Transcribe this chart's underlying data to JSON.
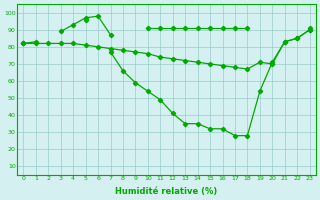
{
  "x": [
    0,
    1,
    2,
    3,
    4,
    5,
    6,
    7,
    8,
    9,
    10,
    11,
    12,
    13,
    14,
    15,
    16,
    17,
    18,
    19,
    20,
    21,
    22,
    23
  ],
  "line_flat": [
    82,
    83,
    null,
    89,
    93,
    97,
    98,
    87,
    null,
    null,
    91,
    91,
    91,
    91,
    91,
    91,
    91,
    91,
    91,
    null,
    null,
    null,
    null,
    91
  ],
  "line_diag": [
    82,
    82,
    82,
    82,
    82,
    81,
    80,
    79,
    78,
    77,
    76,
    74,
    73,
    72,
    71,
    70,
    69,
    68,
    67,
    71,
    70,
    83,
    85,
    90
  ],
  "line_dip": [
    82,
    null,
    null,
    null,
    null,
    96,
    null,
    77,
    66,
    59,
    54,
    49,
    41,
    35,
    35,
    32,
    32,
    28,
    28,
    54,
    71,
    83,
    85,
    90
  ],
  "bg_color": "#d5f0f0",
  "grid_color": "#99cccc",
  "line_color": "#00aa00",
  "ylabel_values": [
    10,
    20,
    30,
    40,
    50,
    60,
    70,
    80,
    90,
    100
  ],
  "xlabel": "Humidité relative (%)",
  "ylim": [
    5,
    105
  ],
  "xlim": [
    -0.5,
    23.5
  ]
}
